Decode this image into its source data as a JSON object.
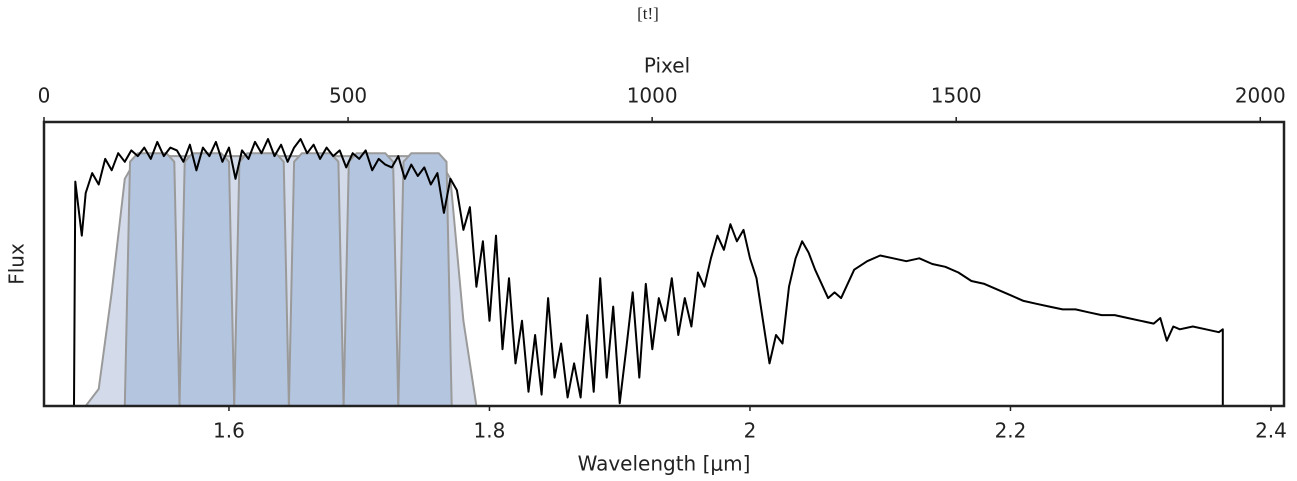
{
  "chart_data": {
    "type": "line",
    "title": "[t!]",
    "xlabel": "Wavelength [μm]",
    "ylabel": "Flux",
    "x2label": "Pixel",
    "xlim": [
      1.458,
      2.41
    ],
    "xticks": [
      1.6,
      1.8,
      2.0,
      2.2,
      2.4
    ],
    "x2lim": [
      0,
      2039
    ],
    "x2ticks": [
      0,
      500,
      1000,
      1500,
      2000
    ],
    "ylim": [
      0,
      1
    ],
    "filters": [
      {
        "color": "#d3dbea",
        "x": [
          1.49,
          1.5,
          1.51,
          1.52,
          1.53,
          1.76,
          1.77,
          1.78,
          1.79
        ],
        "values": [
          0,
          0.06,
          0.4,
          0.8,
          0.88,
          0.88,
          0.8,
          0.3,
          0
        ]
      },
      {
        "color": "#b4c5df",
        "x": [
          1.52,
          1.524,
          1.53,
          1.552,
          1.558,
          1.562
        ],
        "values": [
          0,
          0.86,
          0.89,
          0.89,
          0.86,
          0
        ]
      },
      {
        "color": "#b4c5df",
        "x": [
          1.562,
          1.566,
          1.572,
          1.594,
          1.6,
          1.604
        ],
        "values": [
          0,
          0.86,
          0.89,
          0.89,
          0.86,
          0
        ]
      },
      {
        "color": "#b4c5df",
        "x": [
          1.604,
          1.608,
          1.614,
          1.636,
          1.642,
          1.646
        ],
        "values": [
          0,
          0.86,
          0.89,
          0.89,
          0.86,
          0
        ]
      },
      {
        "color": "#b4c5df",
        "x": [
          1.646,
          1.65,
          1.656,
          1.678,
          1.684,
          1.688
        ],
        "values": [
          0,
          0.86,
          0.89,
          0.89,
          0.86,
          0
        ]
      },
      {
        "color": "#b4c5df",
        "x": [
          1.688,
          1.692,
          1.698,
          1.72,
          1.726,
          1.73
        ],
        "values": [
          0,
          0.86,
          0.89,
          0.89,
          0.86,
          0
        ]
      },
      {
        "color": "#b4c5df",
        "x": [
          1.73,
          1.734,
          1.74,
          1.761,
          1.767,
          1.771
        ],
        "values": [
          0,
          0.86,
          0.89,
          0.89,
          0.86,
          0
        ]
      }
    ],
    "series": [
      {
        "color": "#000000",
        "x": [
          1.481,
          1.482,
          1.487,
          1.49,
          1.495,
          1.5,
          1.505,
          1.51,
          1.515,
          1.52,
          1.525,
          1.53,
          1.535,
          1.54,
          1.545,
          1.55,
          1.555,
          1.56,
          1.565,
          1.57,
          1.575,
          1.58,
          1.585,
          1.59,
          1.595,
          1.6,
          1.605,
          1.61,
          1.615,
          1.62,
          1.625,
          1.63,
          1.635,
          1.64,
          1.645,
          1.65,
          1.655,
          1.66,
          1.665,
          1.67,
          1.675,
          1.68,
          1.685,
          1.69,
          1.695,
          1.7,
          1.705,
          1.71,
          1.715,
          1.72,
          1.725,
          1.73,
          1.735,
          1.74,
          1.745,
          1.75,
          1.755,
          1.76,
          1.765,
          1.77,
          1.775,
          1.78,
          1.785,
          1.79,
          1.795,
          1.8,
          1.805,
          1.81,
          1.815,
          1.82,
          1.825,
          1.83,
          1.835,
          1.84,
          1.845,
          1.85,
          1.855,
          1.86,
          1.865,
          1.87,
          1.875,
          1.88,
          1.885,
          1.89,
          1.895,
          1.9,
          1.905,
          1.91,
          1.915,
          1.92,
          1.925,
          1.93,
          1.935,
          1.94,
          1.945,
          1.95,
          1.955,
          1.96,
          1.965,
          1.97,
          1.975,
          1.98,
          1.985,
          1.99,
          1.995,
          2.0,
          2.005,
          2.01,
          2.015,
          2.02,
          2.025,
          2.03,
          2.035,
          2.04,
          2.045,
          2.05,
          2.06,
          2.065,
          2.07,
          2.08,
          2.09,
          2.1,
          2.11,
          2.12,
          2.13,
          2.14,
          2.15,
          2.16,
          2.17,
          2.18,
          2.19,
          2.2,
          2.21,
          2.22,
          2.23,
          2.24,
          2.25,
          2.26,
          2.27,
          2.28,
          2.29,
          2.3,
          2.31,
          2.315,
          2.32,
          2.325,
          2.33,
          2.34,
          2.35,
          2.36,
          2.363,
          2.363
        ],
        "values": [
          0,
          0.79,
          0.6,
          0.75,
          0.82,
          0.78,
          0.87,
          0.83,
          0.89,
          0.86,
          0.9,
          0.88,
          0.91,
          0.87,
          0.93,
          0.88,
          0.91,
          0.9,
          0.86,
          0.92,
          0.83,
          0.91,
          0.88,
          0.93,
          0.86,
          0.91,
          0.8,
          0.9,
          0.87,
          0.93,
          0.89,
          0.94,
          0.88,
          0.92,
          0.86,
          0.91,
          0.94,
          0.89,
          0.92,
          0.87,
          0.91,
          0.88,
          0.9,
          0.84,
          0.89,
          0.87,
          0.9,
          0.83,
          0.87,
          0.85,
          0.84,
          0.88,
          0.8,
          0.85,
          0.81,
          0.84,
          0.78,
          0.82,
          0.68,
          0.8,
          0.76,
          0.62,
          0.7,
          0.42,
          0.58,
          0.3,
          0.6,
          0.2,
          0.45,
          0.15,
          0.3,
          0.05,
          0.25,
          0.04,
          0.38,
          0.1,
          0.22,
          0.03,
          0.15,
          0.03,
          0.32,
          0.05,
          0.45,
          0.1,
          0.35,
          0.01,
          0.2,
          0.4,
          0.1,
          0.43,
          0.2,
          0.38,
          0.3,
          0.45,
          0.25,
          0.38,
          0.28,
          0.47,
          0.42,
          0.52,
          0.6,
          0.55,
          0.64,
          0.58,
          0.62,
          0.52,
          0.45,
          0.3,
          0.15,
          0.25,
          0.22,
          0.42,
          0.52,
          0.58,
          0.54,
          0.48,
          0.38,
          0.4,
          0.38,
          0.48,
          0.51,
          0.53,
          0.52,
          0.51,
          0.52,
          0.5,
          0.49,
          0.47,
          0.44,
          0.43,
          0.41,
          0.39,
          0.37,
          0.36,
          0.35,
          0.34,
          0.34,
          0.33,
          0.32,
          0.32,
          0.31,
          0.3,
          0.29,
          0.31,
          0.23,
          0.28,
          0.27,
          0.28,
          0.27,
          0.26,
          0.27,
          0
        ]
      }
    ]
  }
}
